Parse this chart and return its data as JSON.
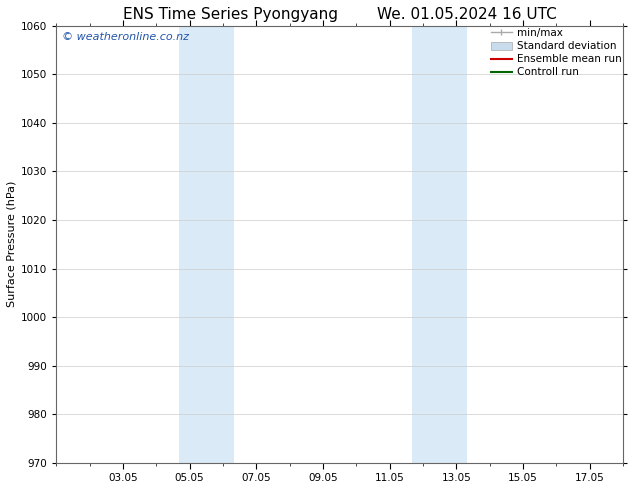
{
  "title_left": "ENS Time Series Pyongyang",
  "title_right": "We. 01.05.2024 16 UTC",
  "ylabel": "Surface Pressure (hPa)",
  "ylim": [
    970,
    1060
  ],
  "yticks": [
    970,
    980,
    990,
    1000,
    1010,
    1020,
    1030,
    1040,
    1050,
    1060
  ],
  "xlim": [
    0,
    17
  ],
  "xtick_labels": [
    "03.05",
    "05.05",
    "07.05",
    "09.05",
    "11.05",
    "13.05",
    "15.05",
    "17.05"
  ],
  "xtick_positions": [
    2,
    4,
    6,
    8,
    10,
    12,
    14,
    16
  ],
  "shaded_bands": [
    {
      "start": 3.67,
      "end": 5.33
    },
    {
      "start": 10.67,
      "end": 12.33
    }
  ],
  "shaded_color": "#daeaf7",
  "watermark_text": "© weatheronline.co.nz",
  "watermark_color": "#2255aa",
  "legend": [
    {
      "label": "min/max",
      "type": "minmax",
      "color": "#aaaaaa"
    },
    {
      "label": "Standard deviation",
      "type": "stddev",
      "color": "#c8dced"
    },
    {
      "label": "Ensemble mean run",
      "type": "line",
      "color": "#cc0000"
    },
    {
      "label": "Controll run",
      "type": "line",
      "color": "#006600"
    }
  ],
  "bg_color": "#ffffff",
  "grid_color": "#cccccc",
  "title_fontsize": 11,
  "legend_fontsize": 7.5,
  "ylabel_fontsize": 8,
  "tick_fontsize": 7.5,
  "watermark_fontsize": 8
}
